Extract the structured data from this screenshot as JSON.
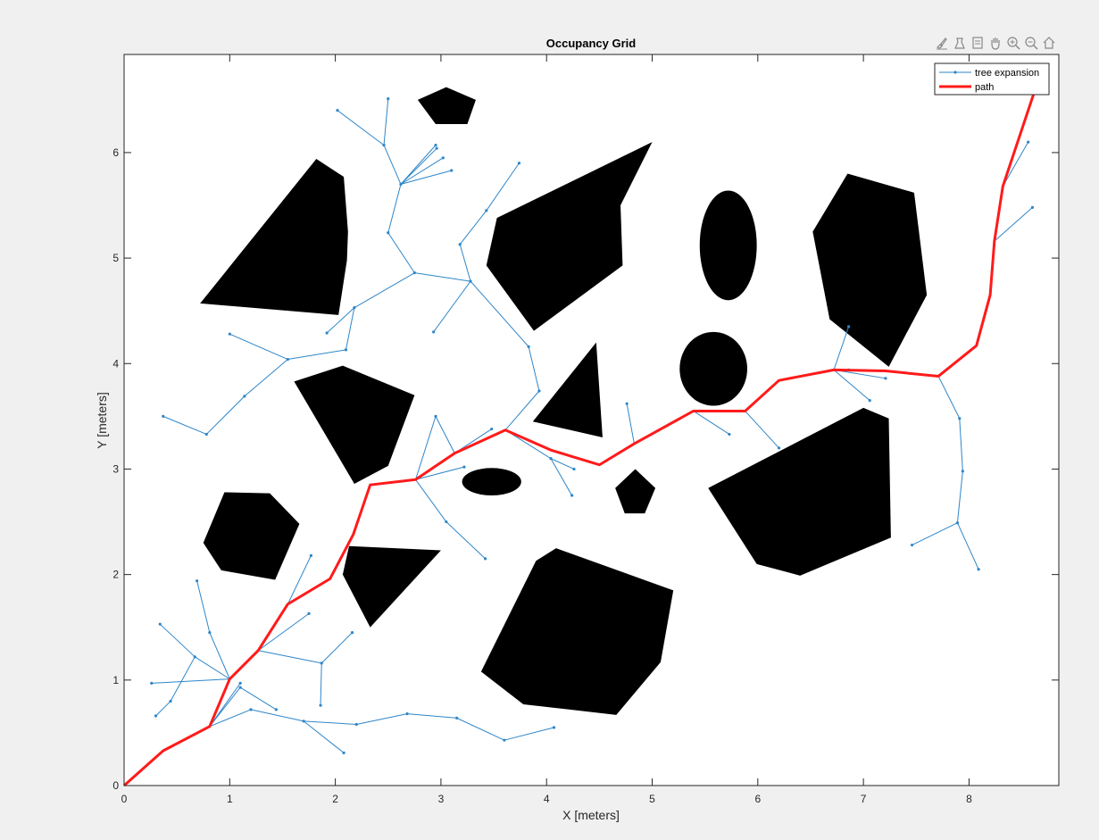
{
  "chart_data": {
    "type": "line",
    "title": "Occupancy Grid",
    "xlabel": "X [meters]",
    "ylabel": "Y [meters]",
    "xlim": [
      0,
      8.85
    ],
    "ylim": [
      0,
      6.93
    ],
    "xticks": [
      "0",
      "1",
      "2",
      "3",
      "4",
      "5",
      "6",
      "7",
      "8"
    ],
    "yticks": [
      "0",
      "1",
      "2",
      "3",
      "4",
      "5",
      "6"
    ],
    "grid": false,
    "legend_position": "top-right",
    "legend": [
      {
        "label": "tree expansion",
        "color": "#2f86c8"
      },
      {
        "label": "path",
        "color": "#ff1a1a"
      }
    ],
    "obstacles": [
      {
        "shape": "polygon",
        "points": [
          [
            1.82,
            5.94
          ],
          [
            2.08,
            5.77
          ],
          [
            2.12,
            5.25
          ],
          [
            2.11,
            4.98
          ],
          [
            2.03,
            4.46
          ],
          [
            0.72,
            4.57
          ]
        ]
      },
      {
        "shape": "polygon",
        "points": [
          [
            2.78,
            6.5
          ],
          [
            3.05,
            6.62
          ],
          [
            3.33,
            6.5
          ],
          [
            3.25,
            6.27
          ],
          [
            3.01,
            6.27
          ],
          [
            2.95,
            6.27
          ]
        ]
      },
      {
        "shape": "polygon",
        "points": [
          [
            3.53,
            5.38
          ],
          [
            5.0,
            6.1
          ],
          [
            4.7,
            5.5
          ],
          [
            4.72,
            4.93
          ],
          [
            3.88,
            4.31
          ],
          [
            3.43,
            4.93
          ]
        ]
      },
      {
        "shape": "ellipse",
        "cx": 5.72,
        "cy": 5.12,
        "rx": 0.27,
        "ry": 0.52
      },
      {
        "shape": "ellipse",
        "cx": 5.58,
        "cy": 3.95,
        "rx": 0.32,
        "ry": 0.35
      },
      {
        "shape": "polygon",
        "points": [
          [
            6.85,
            5.8
          ],
          [
            7.48,
            5.62
          ],
          [
            7.6,
            4.65
          ],
          [
            7.24,
            3.97
          ],
          [
            6.68,
            4.42
          ],
          [
            6.52,
            5.25
          ]
        ]
      },
      {
        "shape": "polygon",
        "points": [
          [
            2.07,
            3.98
          ],
          [
            2.75,
            3.7
          ],
          [
            2.5,
            3.03
          ],
          [
            2.18,
            2.86
          ],
          [
            1.61,
            3.83
          ]
        ]
      },
      {
        "shape": "polygon",
        "points": [
          [
            4.47,
            4.2
          ],
          [
            4.53,
            3.3
          ],
          [
            3.87,
            3.45
          ]
        ]
      },
      {
        "shape": "ellipse",
        "cx": 3.48,
        "cy": 2.88,
        "rx": 0.28,
        "ry": 0.13
      },
      {
        "shape": "polygon",
        "points": [
          [
            4.84,
            3.0
          ],
          [
            5.03,
            2.82
          ],
          [
            4.93,
            2.58
          ],
          [
            4.74,
            2.58
          ],
          [
            4.65,
            2.82
          ]
        ]
      },
      {
        "shape": "polygon",
        "points": [
          [
            7.0,
            3.58
          ],
          [
            7.24,
            3.48
          ],
          [
            7.26,
            2.35
          ],
          [
            6.4,
            1.99
          ],
          [
            5.99,
            2.1
          ],
          [
            5.53,
            2.82
          ]
        ]
      },
      {
        "shape": "polygon",
        "points": [
          [
            0.95,
            2.78
          ],
          [
            1.38,
            2.77
          ],
          [
            1.66,
            2.48
          ],
          [
            1.43,
            1.95
          ],
          [
            0.92,
            2.04
          ],
          [
            0.75,
            2.3
          ]
        ]
      },
      {
        "shape": "polygon",
        "points": [
          [
            2.13,
            2.27
          ],
          [
            3.0,
            2.23
          ],
          [
            2.33,
            1.5
          ],
          [
            2.07,
            2.0
          ]
        ]
      },
      {
        "shape": "polygon",
        "points": [
          [
            4.09,
            2.25
          ],
          [
            5.2,
            1.85
          ],
          [
            5.08,
            1.17
          ],
          [
            4.66,
            0.67
          ],
          [
            3.78,
            0.77
          ],
          [
            3.38,
            1.08
          ],
          [
            3.9,
            2.13
          ]
        ]
      }
    ],
    "tree_segments": [
      [
        [
          0.81,
          0.56
        ],
        [
          1.1,
          0.93
        ]
      ],
      [
        [
          0.81,
          0.56
        ],
        [
          1.1,
          0.97
        ]
      ],
      [
        [
          0.81,
          0.56
        ],
        [
          1.2,
          0.72
        ]
      ],
      [
        [
          1.1,
          0.93
        ],
        [
          1.44,
          0.72
        ]
      ],
      [
        [
          1.2,
          0.72
        ],
        [
          1.7,
          0.61
        ]
      ],
      [
        [
          1.7,
          0.61
        ],
        [
          2.08,
          0.31
        ]
      ],
      [
        [
          1.7,
          0.61
        ],
        [
          2.2,
          0.58
        ]
      ],
      [
        [
          2.2,
          0.58
        ],
        [
          2.68,
          0.68
        ]
      ],
      [
        [
          2.68,
          0.68
        ],
        [
          3.15,
          0.64
        ]
      ],
      [
        [
          3.15,
          0.64
        ],
        [
          3.6,
          0.43
        ]
      ],
      [
        [
          3.6,
          0.43
        ],
        [
          4.07,
          0.55
        ]
      ],
      [
        [
          1.0,
          1.01
        ],
        [
          0.26,
          0.97
        ]
      ],
      [
        [
          1.0,
          1.01
        ],
        [
          0.67,
          1.22
        ]
      ],
      [
        [
          0.67,
          1.22
        ],
        [
          0.34,
          1.53
        ]
      ],
      [
        [
          0.67,
          1.22
        ],
        [
          0.44,
          0.8
        ]
      ],
      [
        [
          0.44,
          0.8
        ],
        [
          0.3,
          0.66
        ]
      ],
      [
        [
          1.0,
          1.01
        ],
        [
          0.81,
          1.45
        ]
      ],
      [
        [
          0.81,
          1.45
        ],
        [
          0.69,
          1.94
        ]
      ],
      [
        [
          1.27,
          1.28
        ],
        [
          1.75,
          1.63
        ]
      ],
      [
        [
          1.27,
          1.28
        ],
        [
          1.87,
          1.16
        ]
      ],
      [
        [
          1.87,
          1.16
        ],
        [
          2.16,
          1.45
        ]
      ],
      [
        [
          1.87,
          1.16
        ],
        [
          1.86,
          0.76
        ]
      ],
      [
        [
          1.55,
          1.72
        ],
        [
          1.77,
          2.18
        ]
      ],
      [
        [
          2.76,
          2.9
        ],
        [
          3.22,
          3.02
        ]
      ],
      [
        [
          2.76,
          2.9
        ],
        [
          3.05,
          2.5
        ]
      ],
      [
        [
          3.05,
          2.5
        ],
        [
          3.42,
          2.15
        ]
      ],
      [
        [
          2.76,
          2.9
        ],
        [
          2.95,
          3.5
        ]
      ],
      [
        [
          3.13,
          3.15
        ],
        [
          2.95,
          3.5
        ]
      ],
      [
        [
          3.13,
          3.15
        ],
        [
          3.48,
          3.38
        ]
      ],
      [
        [
          3.61,
          3.37
        ],
        [
          4.04,
          3.1
        ]
      ],
      [
        [
          4.04,
          3.1
        ],
        [
          4.26,
          3.0
        ]
      ],
      [
        [
          4.04,
          3.1
        ],
        [
          4.24,
          2.75
        ]
      ],
      [
        [
          3.61,
          3.37
        ],
        [
          3.93,
          3.74
        ]
      ],
      [
        [
          3.93,
          3.74
        ],
        [
          3.83,
          4.16
        ]
      ],
      [
        [
          3.83,
          4.16
        ],
        [
          3.28,
          4.78
        ]
      ],
      [
        [
          3.28,
          4.78
        ],
        [
          2.93,
          4.3
        ]
      ],
      [
        [
          3.28,
          4.78
        ],
        [
          3.18,
          5.13
        ]
      ],
      [
        [
          3.18,
          5.13
        ],
        [
          3.43,
          5.45
        ]
      ],
      [
        [
          3.43,
          5.45
        ],
        [
          3.74,
          5.9
        ]
      ],
      [
        [
          3.28,
          4.78
        ],
        [
          2.75,
          4.86
        ]
      ],
      [
        [
          2.75,
          4.86
        ],
        [
          2.5,
          5.24
        ]
      ],
      [
        [
          2.5,
          5.24
        ],
        [
          2.62,
          5.7
        ]
      ],
      [
        [
          2.62,
          5.7
        ],
        [
          2.95,
          6.07
        ]
      ],
      [
        [
          2.62,
          5.7
        ],
        [
          2.96,
          6.04
        ]
      ],
      [
        [
          2.62,
          5.7
        ],
        [
          3.02,
          5.95
        ]
      ],
      [
        [
          2.62,
          5.7
        ],
        [
          3.1,
          5.83
        ]
      ],
      [
        [
          2.62,
          5.7
        ],
        [
          2.46,
          6.07
        ]
      ],
      [
        [
          2.46,
          6.07
        ],
        [
          2.5,
          6.51
        ]
      ],
      [
        [
          2.46,
          6.07
        ],
        [
          2.02,
          6.4
        ]
      ],
      [
        [
          2.75,
          4.86
        ],
        [
          2.18,
          4.53
        ]
      ],
      [
        [
          2.18,
          4.53
        ],
        [
          1.92,
          4.29
        ]
      ],
      [
        [
          2.18,
          4.53
        ],
        [
          2.1,
          4.13
        ]
      ],
      [
        [
          2.1,
          4.13
        ],
        [
          1.55,
          4.04
        ]
      ],
      [
        [
          1.55,
          4.04
        ],
        [
          1.0,
          4.28
        ]
      ],
      [
        [
          1.55,
          4.04
        ],
        [
          1.14,
          3.69
        ]
      ],
      [
        [
          1.14,
          3.69
        ],
        [
          0.78,
          3.33
        ]
      ],
      [
        [
          0.78,
          3.33
        ],
        [
          0.37,
          3.5
        ]
      ],
      [
        [
          4.83,
          3.24
        ],
        [
          4.76,
          3.62
        ]
      ],
      [
        [
          5.39,
          3.55
        ],
        [
          5.73,
          3.33
        ]
      ],
      [
        [
          5.88,
          3.55
        ],
        [
          6.2,
          3.2
        ]
      ],
      [
        [
          6.72,
          3.94
        ],
        [
          6.86,
          3.94
        ]
      ],
      [
        [
          6.72,
          3.94
        ],
        [
          7.21,
          3.86
        ]
      ],
      [
        [
          6.72,
          3.94
        ],
        [
          7.06,
          3.65
        ]
      ],
      [
        [
          6.72,
          3.94
        ],
        [
          6.86,
          4.35
        ]
      ],
      [
        [
          7.71,
          3.88
        ],
        [
          7.91,
          3.48
        ]
      ],
      [
        [
          7.91,
          3.48
        ],
        [
          7.94,
          2.98
        ]
      ],
      [
        [
          7.94,
          2.98
        ],
        [
          7.89,
          2.49
        ]
      ],
      [
        [
          7.89,
          2.49
        ],
        [
          8.09,
          2.05
        ]
      ],
      [
        [
          7.89,
          2.49
        ],
        [
          7.46,
          2.28
        ]
      ],
      [
        [
          8.24,
          5.16
        ],
        [
          8.6,
          5.48
        ]
      ],
      [
        [
          8.32,
          5.68
        ],
        [
          8.56,
          6.1
        ]
      ]
    ],
    "tree_nodes": [
      [
        1.1,
        0.93
      ],
      [
        1.1,
        0.97
      ],
      [
        1.2,
        0.72
      ],
      [
        1.44,
        0.72
      ],
      [
        1.7,
        0.61
      ],
      [
        2.08,
        0.31
      ],
      [
        2.2,
        0.58
      ],
      [
        2.68,
        0.68
      ],
      [
        3.15,
        0.64
      ],
      [
        3.6,
        0.43
      ],
      [
        4.07,
        0.55
      ],
      [
        0.26,
        0.97
      ],
      [
        0.67,
        1.22
      ],
      [
        0.34,
        1.53
      ],
      [
        0.44,
        0.8
      ],
      [
        0.3,
        0.66
      ],
      [
        0.81,
        1.45
      ],
      [
        0.69,
        1.94
      ],
      [
        1.75,
        1.63
      ],
      [
        1.87,
        1.16
      ],
      [
        2.16,
        1.45
      ],
      [
        1.86,
        0.76
      ],
      [
        1.77,
        2.18
      ],
      [
        3.22,
        3.02
      ],
      [
        3.05,
        2.5
      ],
      [
        3.42,
        2.15
      ],
      [
        2.95,
        3.5
      ],
      [
        3.48,
        3.38
      ],
      [
        4.04,
        3.1
      ],
      [
        4.26,
        3.0
      ],
      [
        4.24,
        2.75
      ],
      [
        3.93,
        3.74
      ],
      [
        3.83,
        4.16
      ],
      [
        3.28,
        4.78
      ],
      [
        2.93,
        4.3
      ],
      [
        3.18,
        5.13
      ],
      [
        3.43,
        5.45
      ],
      [
        3.74,
        5.9
      ],
      [
        2.75,
        4.86
      ],
      [
        2.5,
        5.24
      ],
      [
        2.62,
        5.7
      ],
      [
        2.95,
        6.07
      ],
      [
        2.96,
        6.04
      ],
      [
        3.02,
        5.95
      ],
      [
        3.1,
        5.83
      ],
      [
        2.46,
        6.07
      ],
      [
        2.5,
        6.51
      ],
      [
        2.02,
        6.4
      ],
      [
        2.18,
        4.53
      ],
      [
        1.92,
        4.29
      ],
      [
        2.1,
        4.13
      ],
      [
        1.55,
        4.04
      ],
      [
        1.0,
        4.28
      ],
      [
        1.14,
        3.69
      ],
      [
        0.78,
        3.33
      ],
      [
        0.37,
        3.5
      ],
      [
        4.76,
        3.62
      ],
      [
        5.73,
        3.33
      ],
      [
        6.2,
        3.2
      ],
      [
        6.86,
        3.94
      ],
      [
        7.21,
        3.86
      ],
      [
        7.06,
        3.65
      ],
      [
        6.86,
        4.35
      ],
      [
        7.91,
        3.48
      ],
      [
        7.94,
        2.98
      ],
      [
        7.89,
        2.49
      ],
      [
        8.09,
        2.05
      ],
      [
        7.46,
        2.28
      ],
      [
        8.6,
        5.48
      ],
      [
        8.56,
        6.1
      ]
    ],
    "path": {
      "x": [
        0.0,
        0.37,
        0.81,
        1.0,
        1.27,
        1.55,
        1.95,
        2.17,
        2.33,
        2.76,
        3.13,
        3.61,
        4.04,
        4.5,
        4.83,
        5.39,
        5.88,
        6.2,
        6.72,
        7.21,
        7.71,
        8.07,
        8.2,
        8.24,
        8.32,
        8.61
      ],
      "y": [
        0.0,
        0.33,
        0.56,
        1.01,
        1.28,
        1.72,
        1.96,
        2.38,
        2.85,
        2.9,
        3.15,
        3.37,
        3.18,
        3.04,
        3.24,
        3.55,
        3.55,
        3.84,
        3.94,
        3.93,
        3.88,
        4.17,
        4.65,
        5.16,
        5.68,
        6.55
      ]
    }
  },
  "toolbar": [
    {
      "name": "brush-icon",
      "tooltip": "Brush"
    },
    {
      "name": "export-icon",
      "tooltip": "Export"
    },
    {
      "name": "datatip-icon",
      "tooltip": "Data Tips"
    },
    {
      "name": "pan-icon",
      "tooltip": "Pan"
    },
    {
      "name": "zoom-in-icon",
      "tooltip": "Zoom In"
    },
    {
      "name": "zoom-out-icon",
      "tooltip": "Zoom Out"
    },
    {
      "name": "home-icon",
      "tooltip": "Restore View"
    }
  ]
}
